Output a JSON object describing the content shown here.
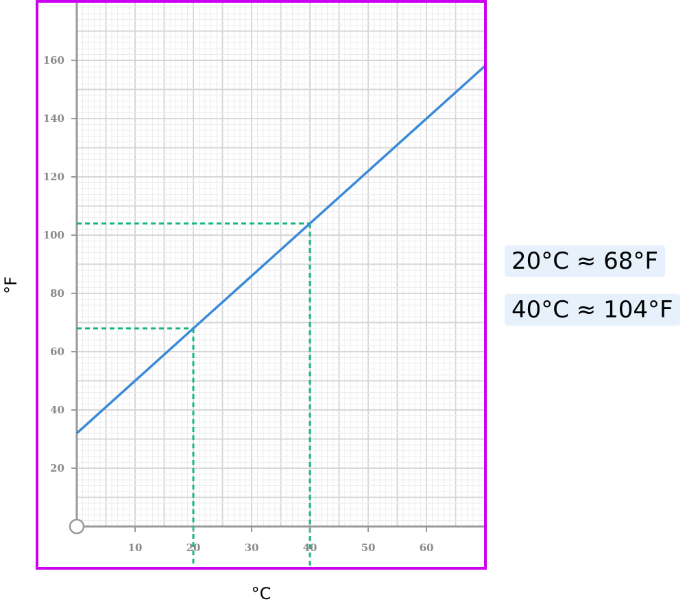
{
  "chart_data": {
    "type": "line",
    "xlabel": "°C",
    "ylabel": "°F",
    "xlim": [
      0,
      70
    ],
    "ylim": [
      0,
      180
    ],
    "x_ticks": [
      10,
      20,
      30,
      40,
      50,
      60
    ],
    "y_ticks": [
      20,
      40,
      60,
      80,
      100,
      120,
      140,
      160
    ],
    "grid": true,
    "series": [
      {
        "x": [
          0,
          70
        ],
        "y": [
          32,
          158
        ],
        "color": "#3a8ad8"
      }
    ],
    "reference_points": [
      {
        "x": 20,
        "y": 68
      },
      {
        "x": 40,
        "y": 104
      }
    ],
    "colors": {
      "frame": "#cc00ee",
      "line": "#3a8ad8",
      "reference": "#14b87a",
      "grid_major": "#d7d7d7",
      "grid_minor": "#ececec",
      "axis": "#999999"
    }
  },
  "annotations": [
    {
      "text": "20°C ≈ 68°F"
    },
    {
      "text": "40°C ≈ 104°F"
    }
  ]
}
